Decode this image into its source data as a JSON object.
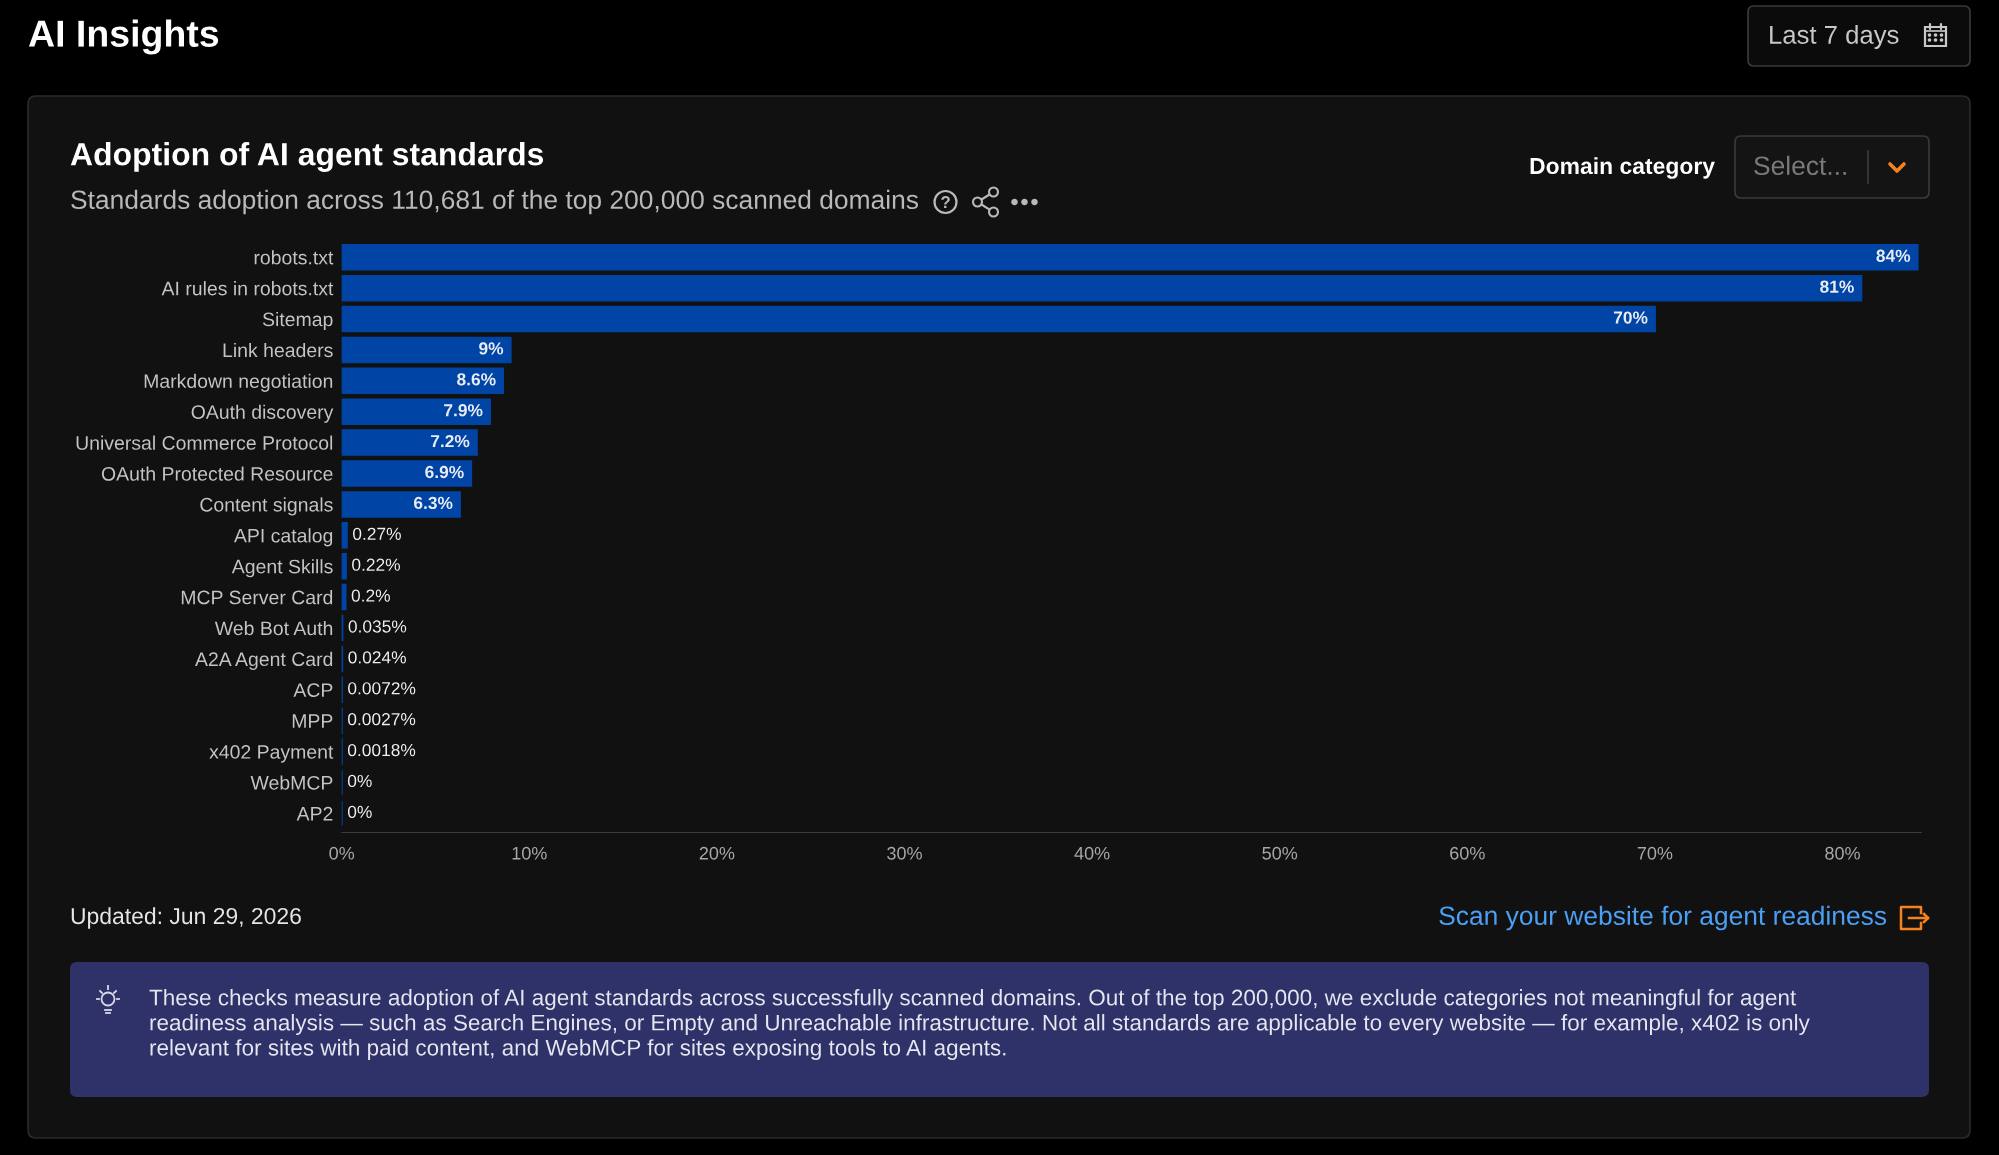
{
  "chart_data": {
    "type": "bar",
    "orientation": "horizontal",
    "title": "Adoption of AI agent standards",
    "subtitle": "Standards adoption across 110,681 of the top 200,000 scanned domains",
    "categories": [
      "robots.txt",
      "AI rules in robots.txt",
      "Sitemap",
      "Link headers",
      "Markdown negotiation",
      "OAuth discovery",
      "Universal Commerce Protocol",
      "OAuth Protected Resource",
      "Content signals",
      "API catalog",
      "Agent Skills",
      "MCP Server Card",
      "Web Bot Auth",
      "A2A Agent Card",
      "ACP",
      "MPP",
      "x402 Payment",
      "WebMCP",
      "AP2"
    ],
    "values": [
      84,
      81,
      70,
      9,
      8.6,
      7.9,
      7.2,
      6.9,
      6.3,
      0.27,
      0.22,
      0.2,
      0.035,
      0.024,
      0.0072,
      0.0027,
      0.0018,
      0,
      0
    ],
    "value_labels": [
      "84%",
      "81%",
      "70%",
      "9%",
      "8.6%",
      "7.9%",
      "7.2%",
      "6.9%",
      "6.3%",
      "0.27%",
      "0.22%",
      "0.2%",
      "0.035%",
      "0.024%",
      "0.0072%",
      "0.0027%",
      "0.0018%",
      "0%",
      "0%"
    ],
    "color": "#0045a6",
    "xlim": [
      0,
      84.2
    ],
    "xticks": [
      {
        "value": 0,
        "label": "0%"
      },
      {
        "value": 10,
        "label": "10%"
      },
      {
        "value": 20,
        "label": "20%"
      },
      {
        "value": 30,
        "label": "30%"
      },
      {
        "value": 40,
        "label": "40%"
      },
      {
        "value": 50,
        "label": "50%"
      },
      {
        "value": 60,
        "label": "60%"
      },
      {
        "value": 70,
        "label": "70%"
      },
      {
        "value": 80,
        "label": "80%"
      }
    ],
    "annotations": [
      "AI Insights",
      "Last 7 days",
      "Domain category",
      "Select...",
      "Updated: Jun 29, 2026",
      "Scan your website for agent readiness",
      "These checks measure adoption of AI agent standards across successfully scanned domains. Out of the top 200,000, we exclude categories not meaningful for agent readiness analysis — such as Search Engines, or Empty and Unreachable infrastructure. Not all standards are applicable to every website — for example, x402 is only relevant for sites with paid content, and WebMCP for sites exposing tools to AI agents."
    ]
  }
}
